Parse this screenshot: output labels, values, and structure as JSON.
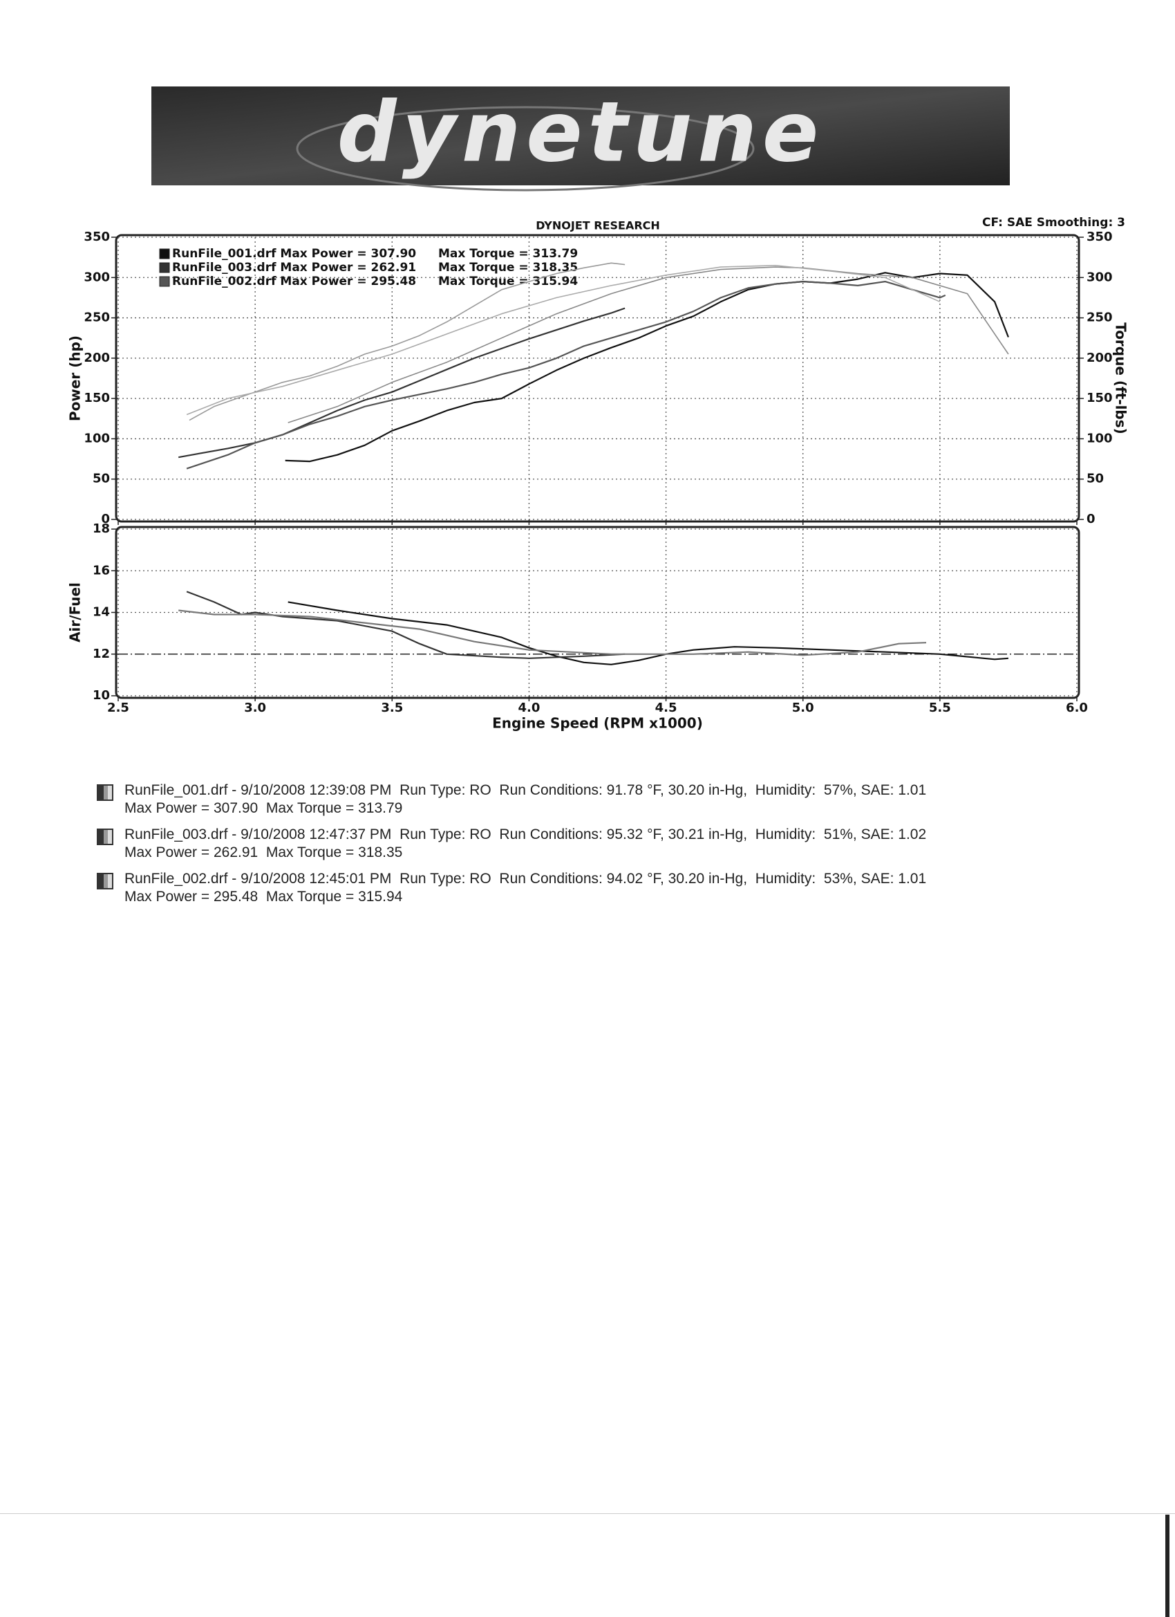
{
  "logo": "dynetune",
  "chart_data": [
    {
      "type": "line",
      "title": "DYNOJET RESEARCH",
      "note": "CF: SAE  Smoothing: 3",
      "ylabel": "Power (hp)",
      "y2label": "Torque (ft-lbs)",
      "xlim": [
        2.5,
        6.0
      ],
      "xticks": [
        2.5,
        3,
        3.5,
        4,
        4.5,
        5,
        5.5,
        6
      ],
      "ylim": [
        0,
        350
      ],
      "yticks": [
        0,
        50,
        100,
        150,
        200,
        250,
        300,
        350
      ],
      "y2lim": [
        0,
        350
      ],
      "y2ticks": [
        0,
        50,
        100,
        150,
        200,
        250,
        300,
        350
      ],
      "grid": true,
      "legend": "top-left",
      "series": [
        {
          "name": "RunFile_001.drf Max Power = 307.90",
          "color": "#111111",
          "x": [
            3.11,
            3.2,
            3.3,
            3.4,
            3.5,
            3.6,
            3.7,
            3.8,
            3.9,
            4.0,
            4.1,
            4.2,
            4.3,
            4.4,
            4.5,
            4.6,
            4.7,
            4.8,
            4.9,
            5.0,
            5.1,
            5.2,
            5.3,
            5.4,
            5.5,
            5.6,
            5.7,
            5.75
          ],
          "values": [
            73,
            72,
            80,
            92,
            110,
            122,
            135,
            145,
            150,
            168,
            185,
            200,
            213,
            225,
            240,
            252,
            270,
            285,
            292,
            295,
            293,
            298,
            306,
            300,
            305,
            303,
            270,
            226
          ]
        },
        {
          "name": "RunFile_003.drf Max Power = 262.91",
          "color": "#333333",
          "x": [
            2.72,
            2.8,
            2.9,
            3.0,
            3.1,
            3.2,
            3.3,
            3.4,
            3.5,
            3.6,
            3.7,
            3.8,
            3.9,
            4.0,
            4.1,
            4.2,
            4.3,
            4.35
          ],
          "values": [
            77,
            82,
            88,
            95,
            105,
            120,
            135,
            148,
            158,
            172,
            186,
            200,
            212,
            224,
            235,
            246,
            256,
            262
          ]
        },
        {
          "name": "RunFile_002.drf Max Power = 295.48",
          "color": "#555555",
          "x": [
            2.75,
            2.9,
            3.0,
            3.1,
            3.2,
            3.3,
            3.4,
            3.5,
            3.6,
            3.7,
            3.8,
            3.9,
            4.0,
            4.1,
            4.2,
            4.3,
            4.4,
            4.5,
            4.6,
            4.7,
            4.8,
            4.9,
            5.0,
            5.1,
            5.2,
            5.3,
            5.4,
            5.5,
            5.52
          ],
          "values": [
            63,
            80,
            95,
            105,
            118,
            128,
            140,
            148,
            155,
            162,
            170,
            180,
            188,
            200,
            215,
            225,
            235,
            245,
            258,
            275,
            287,
            292,
            295,
            293,
            290,
            295,
            285,
            275,
            278
          ]
        },
        {
          "name": "Max Torque = 313.79",
          "color": "#888888",
          "axis": "y2",
          "x": [
            3.12,
            3.3,
            3.5,
            3.7,
            3.9,
            4.1,
            4.3,
            4.5,
            4.7,
            4.9,
            5.0,
            5.2,
            5.4,
            5.6,
            5.75
          ],
          "values": [
            120,
            140,
            170,
            195,
            225,
            255,
            280,
            300,
            310,
            313,
            312,
            305,
            300,
            280,
            205
          ]
        },
        {
          "name": "Max Torque = 318.35",
          "color": "#999999",
          "axis": "y2",
          "x": [
            2.76,
            2.85,
            3.0,
            3.1,
            3.2,
            3.3,
            3.4,
            3.5,
            3.6,
            3.7,
            3.8,
            3.9,
            4.0,
            4.1,
            4.2,
            4.3,
            4.35
          ],
          "values": [
            123,
            140,
            158,
            170,
            178,
            190,
            205,
            215,
            228,
            245,
            265,
            285,
            295,
            305,
            312,
            318,
            316
          ]
        },
        {
          "name": "Max Torque = 315.94",
          "color": "#aaaaaa",
          "axis": "y2",
          "x": [
            2.75,
            2.9,
            3.1,
            3.3,
            3.5,
            3.7,
            3.9,
            4.1,
            4.3,
            4.5,
            4.7,
            4.9,
            5.1,
            5.3,
            5.5
          ],
          "values": [
            130,
            150,
            165,
            185,
            205,
            230,
            255,
            275,
            290,
            303,
            313,
            315,
            308,
            300,
            270
          ]
        }
      ]
    },
    {
      "type": "line",
      "xlabel": "Engine Speed (RPM x1000)",
      "ylabel": "Air/Fuel",
      "xlim": [
        2.5,
        6.0
      ],
      "xticks": [
        2.5,
        {
          "value": 3,
          "label": "3.0"
        },
        3.5,
        {
          "value": 4,
          "label": "4.0"
        },
        4.5,
        {
          "value": 5,
          "label": "5.0"
        },
        5.5,
        {
          "value": 6,
          "label": "6.0"
        }
      ],
      "ylim": [
        10,
        18
      ],
      "yticks": [
        10,
        12,
        14,
        16,
        18
      ],
      "grid": true,
      "hline": 12,
      "series": [
        {
          "color": "#111111",
          "x": [
            3.12,
            3.3,
            3.5,
            3.7,
            3.9,
            4.0,
            4.1,
            4.2,
            4.3,
            4.4,
            4.5,
            4.6,
            4.75,
            4.9,
            5.1,
            5.3,
            5.5,
            5.7,
            5.75
          ],
          "values": [
            14.5,
            14.1,
            13.7,
            13.4,
            12.8,
            12.3,
            11.9,
            11.6,
            11.5,
            11.7,
            12.0,
            12.2,
            12.35,
            12.3,
            12.2,
            12.1,
            12.0,
            11.75,
            11.8
          ]
        },
        {
          "color": "#333333",
          "x": [
            2.75,
            2.85,
            2.95,
            3.0,
            3.1,
            3.3,
            3.5,
            3.6,
            3.7,
            3.9,
            4.0,
            4.2,
            4.35
          ],
          "values": [
            15.0,
            14.5,
            13.9,
            14.0,
            13.8,
            13.6,
            13.1,
            12.5,
            12.0,
            11.85,
            11.8,
            11.9,
            12.0
          ]
        },
        {
          "color": "#777777",
          "x": [
            2.72,
            2.85,
            3.0,
            3.2,
            3.4,
            3.6,
            3.8,
            4.0,
            4.3,
            4.6,
            4.8,
            5.0,
            5.2,
            5.35,
            5.45
          ],
          "values": [
            14.1,
            13.9,
            13.9,
            13.8,
            13.5,
            13.2,
            12.6,
            12.2,
            12.0,
            12.0,
            12.1,
            11.95,
            12.1,
            12.5,
            12.55
          ]
        }
      ]
    }
  ],
  "runs": [
    {
      "line1": "RunFile_001.drf - 9/10/2008 12:39:08 PM  Run Type: RO  Run Conditions: 91.78 °F, 30.20 in-Hg,  Humidity:  57%, SAE: 1.01",
      "line2": "Max Power = 307.90  Max Torque = 313.79"
    },
    {
      "line1": "RunFile_003.drf - 9/10/2008 12:47:37 PM  Run Type: RO  Run Conditions: 95.32 °F, 30.21 in-Hg,  Humidity:  51%, SAE: 1.02",
      "line2": "Max Power = 262.91  Max Torque = 318.35"
    },
    {
      "line1": "RunFile_002.drf - 9/10/2008 12:45:01 PM  Run Type: RO  Run Conditions: 94.02 °F, 30.20 in-Hg,  Humidity:  53%, SAE: 1.01",
      "line2": "Max Power = 295.48  Max Torque = 315.94"
    }
  ]
}
